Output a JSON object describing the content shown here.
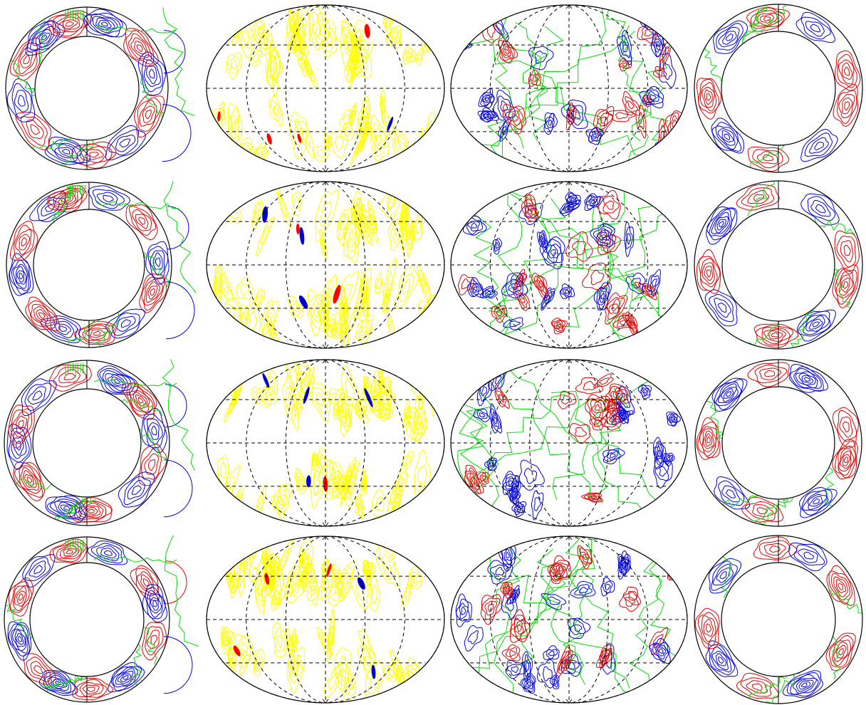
{
  "figure": {
    "rows": 4,
    "panels_per_row": [
      "meridional-section",
      "hammer-projection-map",
      "hammer-projection-map",
      "meridional-section"
    ],
    "colors": {
      "positive": "#e00000",
      "negative": "#0000e0",
      "zero": "#00dd00",
      "map_field": "#ffff00",
      "map_field_extreme_positive": "#ff0000",
      "map_field_extreme_negative": "#0000cc",
      "outline": "#000000",
      "graticule": "#000000"
    },
    "graticule": {
      "longitude_lines": 6,
      "latitude_lines": 2,
      "line_style": "dashed"
    }
  }
}
